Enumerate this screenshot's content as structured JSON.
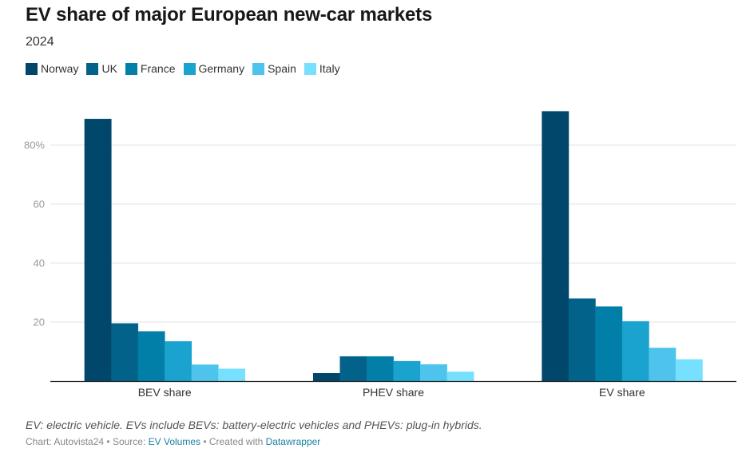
{
  "header": {
    "title": "EV share of major European new-car markets",
    "subtitle": "2024"
  },
  "legend": [
    {
      "label": "Norway",
      "color": "#01466b"
    },
    {
      "label": "UK",
      "color": "#02628a"
    },
    {
      "label": "France",
      "color": "#027fa8"
    },
    {
      "label": "Germany",
      "color": "#1aa3cf"
    },
    {
      "label": "Spain",
      "color": "#4ec3ec"
    },
    {
      "label": "Italy",
      "color": "#76e0fe"
    }
  ],
  "footer": {
    "notes": "EV: electric vehicle. EVs include BEVs: battery-electric vehicles and PHEVs: plug-in hybrids.",
    "chart_prefix": "Chart: Autovista24",
    "separator": " • ",
    "source_prefix": "Source: ",
    "source_link": "EV Volumes",
    "created_prefix": "Created with ",
    "created_link": "Datawrapper"
  },
  "chart_data": {
    "type": "bar",
    "title": "EV share of major European new-car markets",
    "subtitle": "2024",
    "xlabel": "",
    "ylabel": "",
    "categories": [
      "BEV share",
      "PHEV share",
      "EV share"
    ],
    "series": [
      {
        "name": "Norway",
        "color": "#01466b",
        "values": [
          88.9,
          2.7,
          91.5
        ]
      },
      {
        "name": "UK",
        "color": "#02628a",
        "values": [
          19.6,
          8.4,
          28.0
        ]
      },
      {
        "name": "France",
        "color": "#027fa8",
        "values": [
          16.9,
          8.4,
          25.3
        ]
      },
      {
        "name": "Germany",
        "color": "#1aa3cf",
        "values": [
          13.5,
          6.8,
          20.3
        ]
      },
      {
        "name": "Spain",
        "color": "#4ec3ec",
        "values": [
          5.6,
          5.7,
          11.3
        ]
      },
      {
        "name": "Italy",
        "color": "#76e0fe",
        "values": [
          4.2,
          3.2,
          7.4
        ]
      }
    ],
    "ylim": [
      0,
      92
    ],
    "yticks": [
      20,
      40,
      60,
      80
    ],
    "ytick_labels": [
      "20",
      "40",
      "60",
      "80%"
    ],
    "grid": true,
    "legend_position": "top-left"
  }
}
